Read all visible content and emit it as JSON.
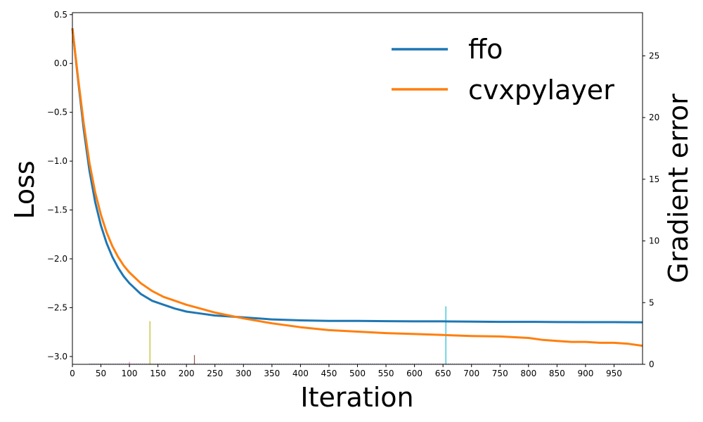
{
  "chart_data": {
    "type": "line",
    "xlabel": "Iteration",
    "ylabel": "Loss",
    "y2label": "Gradient error",
    "xlim": [
      0,
      1000
    ],
    "ylim": [
      -3.08,
      0.52
    ],
    "y2lim": [
      0,
      28.5
    ],
    "xticks": [
      0,
      50,
      100,
      150,
      200,
      250,
      300,
      350,
      400,
      450,
      500,
      550,
      600,
      650,
      700,
      750,
      800,
      850,
      900,
      950
    ],
    "yticks": [
      0.5,
      0.0,
      -0.5,
      -1.0,
      -1.5,
      -2.0,
      -2.5,
      -3.0
    ],
    "y2ticks": [
      0,
      5,
      10,
      15,
      20,
      25
    ],
    "legend_position": "top-right",
    "grid": false,
    "series": [
      {
        "name": "ffo",
        "color": "#1f77b4",
        "axis": "left",
        "x": [
          0,
          10,
          20,
          30,
          40,
          50,
          60,
          70,
          80,
          90,
          100,
          120,
          140,
          160,
          180,
          200,
          225,
          250,
          275,
          300,
          350,
          400,
          450,
          500,
          550,
          600,
          650,
          700,
          750,
          800,
          850,
          900,
          950,
          1000
        ],
        "y": [
          0.36,
          -0.17,
          -0.68,
          -1.1,
          -1.42,
          -1.66,
          -1.84,
          -1.98,
          -2.09,
          -2.18,
          -2.25,
          -2.36,
          -2.43,
          -2.47,
          -2.51,
          -2.54,
          -2.56,
          -2.58,
          -2.59,
          -2.6,
          -2.62,
          -2.63,
          -2.635,
          -2.635,
          -2.638,
          -2.64,
          -2.64,
          -2.643,
          -2.645,
          -2.645,
          -2.647,
          -2.648,
          -2.648,
          -2.65
        ]
      },
      {
        "name": "cvxpylayer",
        "color": "#ff7f0e",
        "axis": "left",
        "x": [
          0,
          10,
          20,
          30,
          40,
          50,
          60,
          70,
          80,
          90,
          100,
          120,
          140,
          160,
          180,
          200,
          225,
          250,
          275,
          300,
          350,
          400,
          450,
          500,
          550,
          600,
          650,
          700,
          750,
          800,
          825,
          850,
          875,
          900,
          925,
          950,
          975,
          1000
        ],
        "y": [
          0.36,
          -0.15,
          -0.62,
          -1.02,
          -1.32,
          -1.55,
          -1.73,
          -1.87,
          -1.98,
          -2.07,
          -2.14,
          -2.25,
          -2.33,
          -2.39,
          -2.43,
          -2.47,
          -2.51,
          -2.55,
          -2.58,
          -2.61,
          -2.66,
          -2.7,
          -2.73,
          -2.745,
          -2.76,
          -2.77,
          -2.78,
          -2.79,
          -2.795,
          -2.81,
          -2.83,
          -2.84,
          -2.85,
          -2.85,
          -2.86,
          -2.86,
          -2.87,
          -2.89
        ]
      }
    ],
    "gradient_error_spikes": [
      {
        "x": 136,
        "y": 3.5,
        "color": "#bcbd22"
      },
      {
        "x": 214,
        "y": 0.75,
        "color": "#8c564b"
      },
      {
        "x": 655,
        "y": 4.7,
        "color": "#17becf"
      },
      {
        "x": 100,
        "y": 0.2,
        "color": "#e377c2"
      }
    ]
  }
}
